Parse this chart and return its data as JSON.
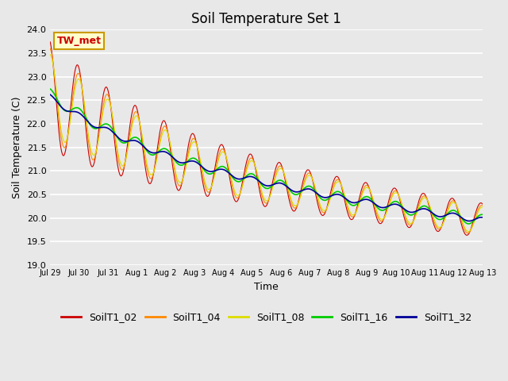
{
  "title": "Soil Temperature Set 1",
  "xlabel": "Time",
  "ylabel": "Soil Temperature (C)",
  "ylim": [
    19.0,
    24.0
  ],
  "yticks": [
    19.0,
    19.5,
    20.0,
    20.5,
    21.0,
    21.5,
    22.0,
    22.5,
    23.0,
    23.5,
    24.0
  ],
  "colors": {
    "SoilT1_02": "#cc0000",
    "SoilT1_04": "#ff8800",
    "SoilT1_08": "#dddd00",
    "SoilT1_16": "#00cc00",
    "SoilT1_32": "#000099"
  },
  "annotation_text": "TW_met",
  "annotation_bg": "#ffffcc",
  "annotation_border": "#cc9900",
  "bg_color": "#e8e8e8",
  "grid_color": "#ffffff",
  "title_fontsize": 12,
  "axis_label_fontsize": 9,
  "tick_fontsize": 8,
  "legend_fontsize": 9,
  "xtick_labels": [
    "Jul 29",
    "Jul 30",
    "Jul 31",
    "Aug 1",
    "Aug 2",
    "Aug 3",
    "Aug 4",
    "Aug 5",
    "Aug 6",
    "Aug 7",
    "Aug 8",
    "Aug 9",
    "Aug 10",
    "Aug 11",
    "Aug 12",
    "Aug 13"
  ],
  "n_points": 1440,
  "days": 15
}
